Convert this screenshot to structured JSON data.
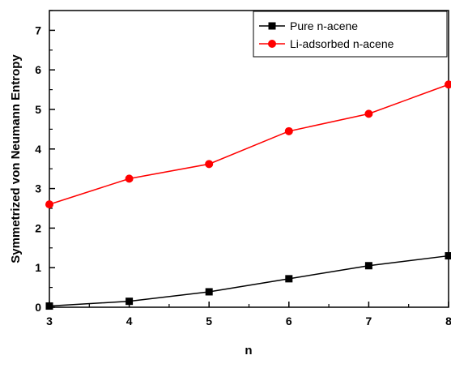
{
  "chart_data": {
    "type": "line",
    "xlabel": "n",
    "ylabel": "Symmetrized von Neumann Entropy",
    "x": [
      3,
      4,
      5,
      6,
      7,
      8
    ],
    "xlim": [
      3,
      8
    ],
    "ylim": [
      0,
      7.5
    ],
    "x_ticks": [
      "3",
      "4",
      "5",
      "6",
      "7",
      "8"
    ],
    "y_ticks": [
      "0",
      "1",
      "2",
      "3",
      "4",
      "5",
      "6",
      "7"
    ],
    "grid": false,
    "legend_position": "top-right",
    "series": [
      {
        "name": "Pure n-acene",
        "marker": "square",
        "color": "#000000",
        "values": [
          0.03,
          0.15,
          0.39,
          0.72,
          1.05,
          1.3
        ]
      },
      {
        "name": "Li-adsorbed n-acene",
        "marker": "circle",
        "color": "#ff0000",
        "values": [
          2.6,
          3.25,
          3.62,
          4.45,
          4.89,
          5.63
        ]
      }
    ]
  }
}
